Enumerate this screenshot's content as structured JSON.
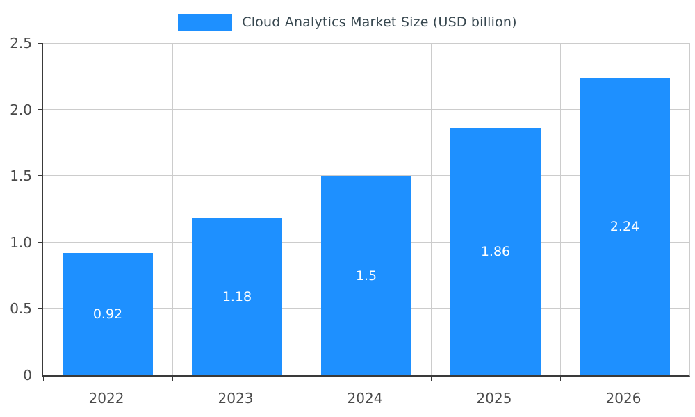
{
  "chart_data": {
    "type": "bar",
    "title": "Cloud Analytics Market Size (USD billion)",
    "categories": [
      "2022",
      "2023",
      "2024",
      "2025",
      "2026"
    ],
    "values": [
      0.92,
      1.18,
      1.5,
      1.86,
      2.24
    ],
    "value_labels": [
      "0.92",
      "1.18",
      "1.5",
      "1.86",
      "2.24"
    ],
    "xlabel": "",
    "ylabel": "",
    "ylim": [
      0,
      2.5
    ],
    "yticks": [
      0,
      0.5,
      1.0,
      1.5,
      2.0,
      2.5
    ],
    "ytick_labels": [
      "0",
      "0.5",
      "1.0",
      "1.5",
      "2.0",
      "2.5"
    ],
    "grid": true,
    "legend_position": "top-center",
    "bar_color": "#1e90ff",
    "grid_color": "#cccccc",
    "axis_color": "#3a3a3a",
    "bar_label_color": "#ffffff"
  }
}
